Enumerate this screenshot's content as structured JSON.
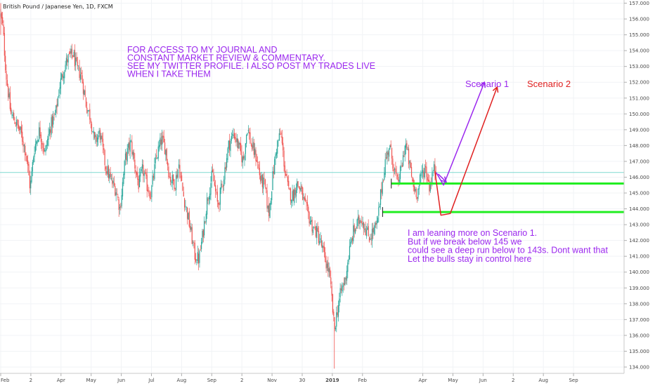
{
  "chart_data": {
    "type": "candlestick",
    "title": "British Pound / Japanese Yen, 1D, FXCM",
    "xlabel": "",
    "ylabel": "",
    "ylim": [
      133.6,
      157.2
    ],
    "y_ticks": [
      134,
      135,
      136,
      137,
      138,
      139,
      140,
      141,
      142,
      143,
      144,
      145,
      146,
      147,
      148,
      149,
      150,
      151,
      152,
      153,
      154,
      155,
      156,
      157
    ],
    "y_tick_labels": [
      "134.000",
      "135.000",
      "136.000",
      "137.000",
      "138.000",
      "139.000",
      "140.000",
      "141.000",
      "142.000",
      "143.000",
      "144.000",
      "145.000",
      "146.000",
      "147.000",
      "148.000",
      "149.000",
      "150.000",
      "151.000",
      "152.000",
      "153.000",
      "154.000",
      "155.000",
      "156.000",
      "157.000"
    ],
    "x_tick_labels": [
      "Feb",
      "2",
      "Apr",
      "May",
      "Jun",
      "Jul",
      "Aug",
      "Sep",
      "2",
      "Nov",
      "30",
      "2019",
      "Feb",
      "Apr",
      "May",
      "Jun",
      "2",
      "Aug",
      "Sep"
    ],
    "x_tick_days": [
      0,
      45,
      90,
      135,
      180,
      225,
      270,
      315,
      360,
      405,
      450,
      495,
      540,
      630,
      675,
      720,
      765,
      810,
      855
    ],
    "grid": true,
    "price_path": [
      [
        0,
        156.2
      ],
      [
        3,
        155.5
      ],
      [
        8,
        152.5
      ],
      [
        15,
        150.0
      ],
      [
        22,
        149.5
      ],
      [
        30,
        148.8
      ],
      [
        38,
        147.5
      ],
      [
        44,
        145.3
      ],
      [
        50,
        147.8
      ],
      [
        58,
        149.0
      ],
      [
        66,
        147.5
      ],
      [
        74,
        149.2
      ],
      [
        82,
        150.0
      ],
      [
        88,
        151.8
      ],
      [
        94,
        152.8
      ],
      [
        100,
        153.5
      ],
      [
        108,
        153.8
      ],
      [
        114,
        152.8
      ],
      [
        120,
        152.5
      ],
      [
        128,
        150.5
      ],
      [
        134,
        149.8
      ],
      [
        140,
        148.2
      ],
      [
        148,
        148.8
      ],
      [
        156,
        146.8
      ],
      [
        164,
        145.8
      ],
      [
        172,
        145.2
      ],
      [
        178,
        144.0
      ],
      [
        186,
        147.2
      ],
      [
        194,
        148.2
      ],
      [
        200,
        146.8
      ],
      [
        206,
        145.5
      ],
      [
        212,
        146.5
      ],
      [
        218,
        145.5
      ],
      [
        224,
        144.9
      ],
      [
        232,
        147.2
      ],
      [
        240,
        148.4
      ],
      [
        246,
        147.8
      ],
      [
        252,
        146.0
      ],
      [
        260,
        145.6
      ],
      [
        266,
        146.8
      ],
      [
        272,
        145.0
      ],
      [
        278,
        143.8
      ],
      [
        284,
        142.5
      ],
      [
        290,
        141.0
      ],
      [
        296,
        140.8
      ],
      [
        302,
        142.5
      ],
      [
        308,
        144.5
      ],
      [
        316,
        146.2
      ],
      [
        324,
        144.2
      ],
      [
        332,
        145.8
      ],
      [
        340,
        148.0
      ],
      [
        348,
        148.8
      ],
      [
        356,
        147.8
      ],
      [
        362,
        147.0
      ],
      [
        368,
        149.2
      ],
      [
        374,
        148.0
      ],
      [
        382,
        147.2
      ],
      [
        388,
        145.8
      ],
      [
        394,
        145.5
      ],
      [
        400,
        143.6
      ],
      [
        406,
        146.0
      ],
      [
        412,
        148.0
      ],
      [
        418,
        148.8
      ],
      [
        424,
        146.5
      ],
      [
        430,
        145.0
      ],
      [
        436,
        144.8
      ],
      [
        442,
        145.6
      ],
      [
        448,
        145.2
      ],
      [
        454,
        144.2
      ],
      [
        460,
        143.5
      ],
      [
        466,
        142.8
      ],
      [
        472,
        142.5
      ],
      [
        478,
        141.8
      ],
      [
        484,
        140.8
      ],
      [
        490,
        140.0
      ],
      [
        494,
        138.4
      ],
      [
        498,
        136.3
      ],
      [
        502,
        137.5
      ],
      [
        508,
        138.8
      ],
      [
        514,
        139.5
      ],
      [
        520,
        141.2
      ],
      [
        526,
        142.5
      ],
      [
        532,
        143.0
      ],
      [
        538,
        143.5
      ],
      [
        544,
        142.8
      ],
      [
        550,
        142.2
      ],
      [
        556,
        142.6
      ],
      [
        562,
        143.0
      ],
      [
        568,
        145.2
      ],
      [
        574,
        147.0
      ],
      [
        580,
        148.0
      ],
      [
        586,
        146.8
      ],
      [
        592,
        145.6
      ],
      [
        598,
        146.5
      ],
      [
        604,
        148.2
      ],
      [
        610,
        146.8
      ],
      [
        616,
        145.4
      ],
      [
        622,
        145.0
      ],
      [
        628,
        146.2
      ],
      [
        634,
        146.6
      ],
      [
        640,
        145.4
      ],
      [
        646,
        146.5
      ],
      [
        650,
        146.3
      ]
    ],
    "current_price": 146.3,
    "levels": [
      {
        "price": 145.6,
        "x_start_day": 583,
        "color": "#22ee22"
      },
      {
        "price": 143.8,
        "x_start_day": 570,
        "color": "#22ee22"
      }
    ],
    "arrows": [
      {
        "color": "#9b27ee",
        "points": [
          [
            650,
            146.3
          ],
          [
            661,
            145.5
          ],
          [
            722,
            152.0
          ]
        ]
      },
      {
        "color": "#9b27ee",
        "points": [
          [
            653,
            146.2
          ],
          [
            665,
            145.7
          ]
        ]
      },
      {
        "color": "#e02020",
        "points": [
          [
            648,
            146.4
          ],
          [
            657,
            143.6
          ],
          [
            671,
            143.7
          ],
          [
            741,
            151.7
          ]
        ]
      }
    ],
    "annotations": {
      "journal_note": [
        "FOR ACCESS TO MY JOURNAL AND",
        "CONSTANT MARKET REVIEW & COMMENTARY.",
        " SEE MY TWITTER PROFILE. I ALSO POST MY TRADES LIVE",
        "WHEN I TAKE THEM"
      ],
      "scenario_1": "Scenario 1",
      "scenario_2": "Scenario 2",
      "analysis_note": [
        "I am leaning more on Scenario 1.",
        " But if we break below 145 we",
        "could see a deep run below to 143s. Dont want that",
        "Let the bulls stay in control here"
      ]
    },
    "colors": {
      "up": "#26a69a",
      "down": "#ef5350",
      "purple_text": "#9b27ee",
      "red_text": "#e02020",
      "price_line": "#5fd0c6"
    }
  }
}
